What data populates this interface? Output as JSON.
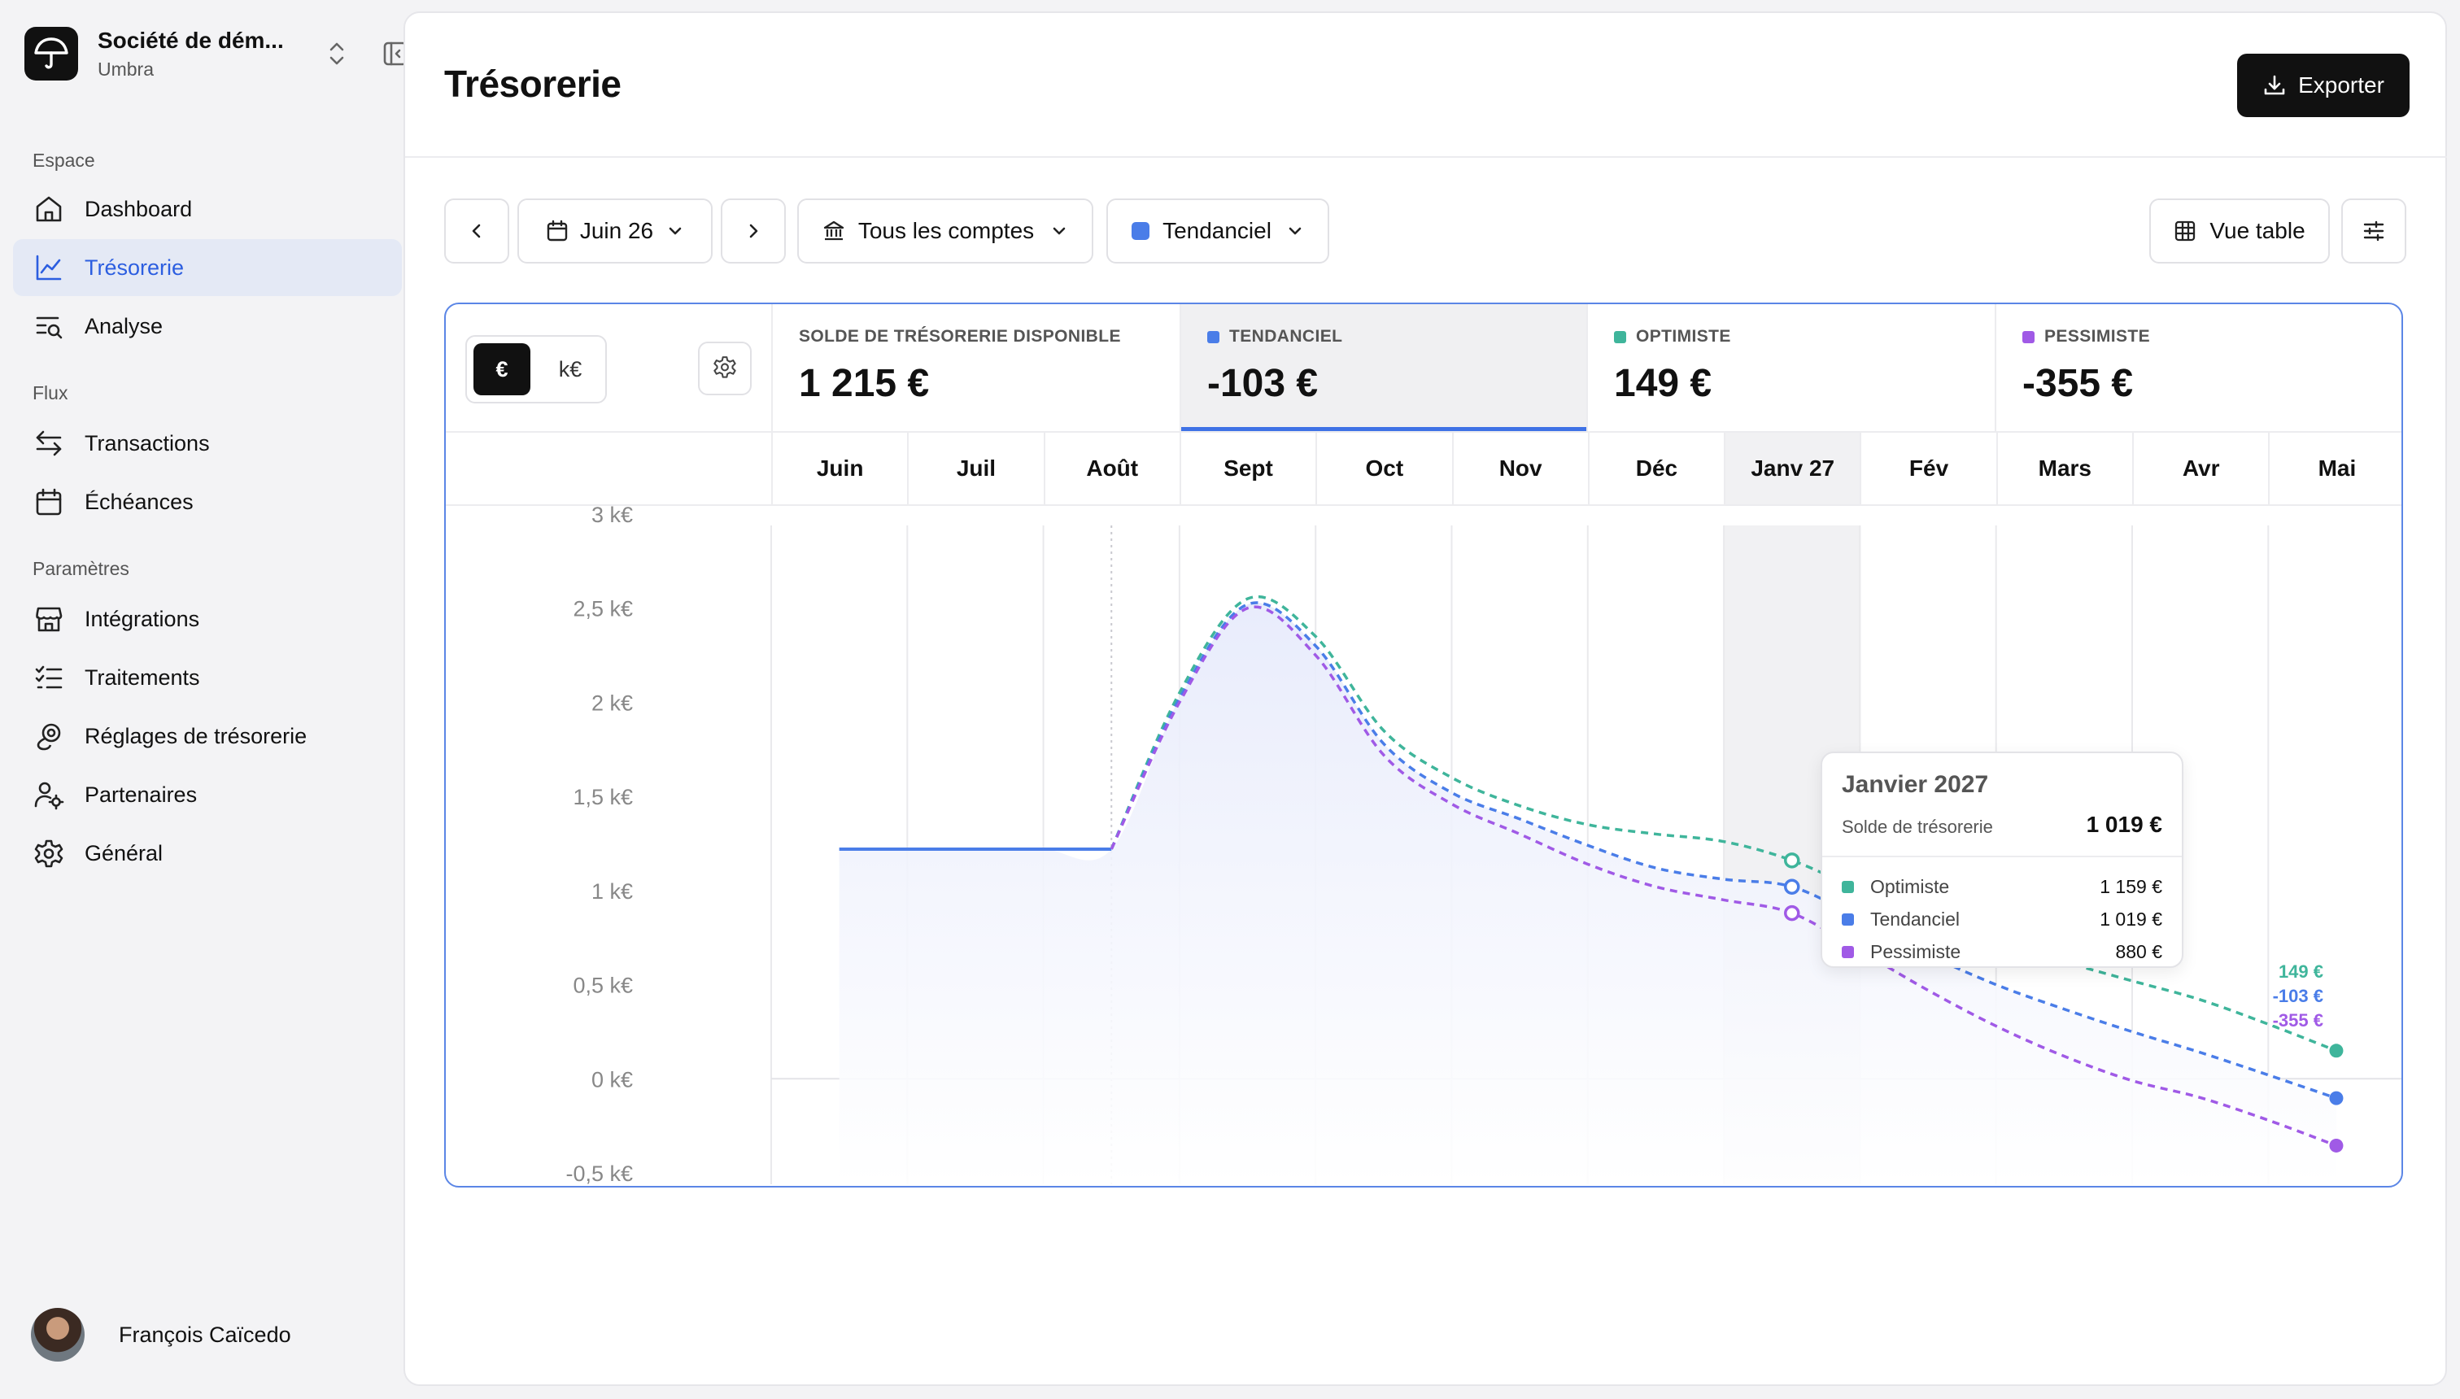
{
  "workspace": {
    "name": "Société de dém...",
    "sub": "Umbra"
  },
  "nav": {
    "sections": [
      "Espace",
      "Flux",
      "Paramètres"
    ],
    "items": [
      {
        "label": "Dashboard",
        "icon": "home-icon"
      },
      {
        "label": "Trésorerie",
        "icon": "line-chart-icon",
        "active": true
      },
      {
        "label": "Analyse",
        "icon": "analyse-list-icon"
      },
      {
        "label": "Transactions",
        "icon": "arrows-exchange-icon"
      },
      {
        "label": "Échéances",
        "icon": "calendar-icon"
      },
      {
        "label": "Intégrations",
        "icon": "store-icon"
      },
      {
        "label": "Traitements",
        "icon": "checklist-icon"
      },
      {
        "label": "Réglages de trésorerie",
        "icon": "coins-gear-icon"
      },
      {
        "label": "Partenaires",
        "icon": "user-gear-icon"
      },
      {
        "label": "Général",
        "icon": "gear-icon"
      }
    ]
  },
  "user": {
    "name": "François Caïcedo"
  },
  "page": {
    "title": "Trésorerie",
    "export_label": "Exporter"
  },
  "toolbar": {
    "period": "Juin 26",
    "accounts": "Tous les comptes",
    "scenario": "Tendanciel",
    "table_view": "Vue table"
  },
  "units": {
    "eur": "€",
    "keur": "k€",
    "selected": "€"
  },
  "kpis": [
    {
      "label": "SOLDE DE TRÉSORERIE DISPONIBLE",
      "value": "1 215 €",
      "color": null
    },
    {
      "label": "TENDANCIEL",
      "value": "-103 €",
      "color": "#4a7de8",
      "active": true
    },
    {
      "label": "OPTIMISTE",
      "value": "149 €",
      "color": "#3fb59b"
    },
    {
      "label": "PESSIMISTE",
      "value": "-355 €",
      "color": "#a05ae6"
    }
  ],
  "colors": {
    "tendanciel": "#4a7de8",
    "optimiste": "#3fb59b",
    "pessimiste": "#a05ae6",
    "accent": "#3f72e6"
  },
  "chart_data": {
    "type": "line",
    "categories": [
      "Juin",
      "Juil",
      "Août",
      "Sept",
      "Oct",
      "Nov",
      "Déc",
      "Janv 27",
      "Fév",
      "Mars",
      "Avr",
      "Mai"
    ],
    "highlight_category": "Janv 27",
    "ytick_labels": [
      "3 k€",
      "2,5 k€",
      "2 k€",
      "1,5 k€",
      "1 k€",
      "0,5 k€",
      "0 k€",
      "-0,5 k€"
    ],
    "ylim": [
      -0.5,
      3
    ],
    "yunit": "k€",
    "actual": {
      "name": "Solde",
      "x": [
        0.0,
        0.5,
        1.0,
        1.5,
        2.0
      ],
      "y": [
        1.22,
        1.22,
        1.22,
        1.22,
        1.22
      ]
    },
    "series": [
      {
        "name": "Optimiste",
        "color": "#3fb59b",
        "x": [
          2.0,
          2.5,
          3.0,
          3.5,
          4.0,
          4.5,
          5.0,
          5.5,
          6.0,
          6.5,
          7.0,
          7.5,
          8.0,
          8.5,
          9.0,
          9.5,
          10.0,
          10.5,
          11.0
        ],
        "y": [
          1.22,
          2.05,
          2.55,
          2.35,
          1.85,
          1.6,
          1.45,
          1.35,
          1.3,
          1.26,
          1.16,
          1.0,
          0.83,
          0.72,
          0.62,
          0.52,
          0.42,
          0.29,
          0.149
        ]
      },
      {
        "name": "Tendanciel",
        "color": "#4a7de8",
        "x": [
          2.0,
          2.5,
          3.0,
          3.5,
          4.0,
          4.5,
          5.0,
          5.5,
          6.0,
          6.5,
          7.0,
          7.5,
          8.0,
          8.5,
          9.0,
          9.5,
          10.0,
          10.5,
          11.0
        ],
        "y": [
          1.22,
          2.02,
          2.52,
          2.3,
          1.78,
          1.52,
          1.38,
          1.24,
          1.12,
          1.06,
          1.02,
          0.85,
          0.66,
          0.5,
          0.37,
          0.25,
          0.14,
          0.02,
          -0.103
        ]
      },
      {
        "name": "Pessimiste",
        "color": "#a05ae6",
        "x": [
          2.0,
          2.5,
          3.0,
          3.5,
          4.0,
          4.5,
          5.0,
          5.5,
          6.0,
          6.5,
          7.0,
          7.5,
          8.0,
          8.5,
          9.0,
          9.5,
          10.0,
          10.5,
          11.0
        ],
        "y": [
          1.22,
          2.0,
          2.5,
          2.25,
          1.72,
          1.46,
          1.3,
          1.14,
          1.02,
          0.95,
          0.88,
          0.68,
          0.47,
          0.28,
          0.12,
          -0.01,
          -0.1,
          -0.22,
          -0.355
        ]
      }
    ],
    "end_labels": [
      "149 €",
      "-103 €",
      "-355 €"
    ]
  },
  "tooltip": {
    "title": "Janvier 2027",
    "subtitle": "Solde de trésorerie",
    "total": "1 019 €",
    "rows": [
      {
        "name": "Optimiste",
        "value": "1 159 €",
        "color": "#3fb59b"
      },
      {
        "name": "Tendanciel",
        "value": "1 019 €",
        "color": "#4a7de8"
      },
      {
        "name": "Pessimiste",
        "value": "880 €",
        "color": "#a05ae6"
      }
    ]
  }
}
